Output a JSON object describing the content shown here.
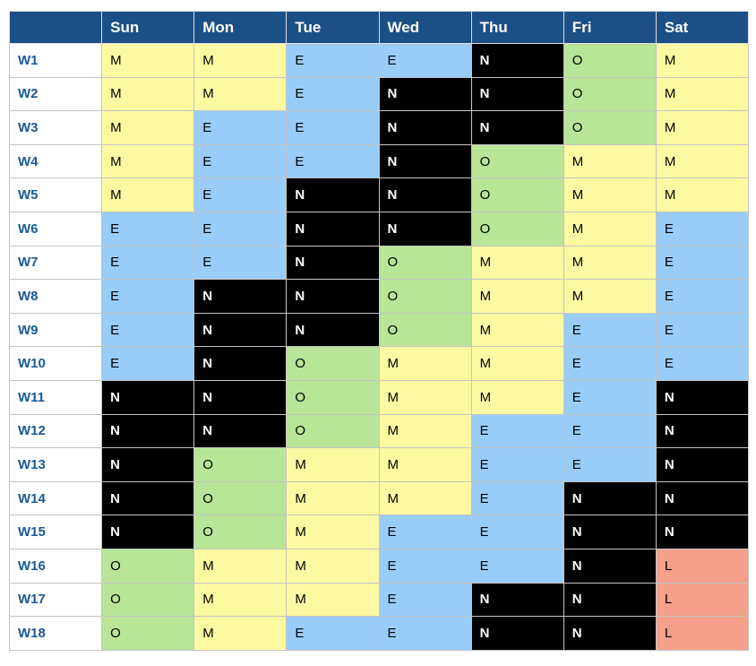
{
  "table": {
    "header": [
      "Sun",
      "Mon",
      "Tue",
      "Wed",
      "Thu",
      "Fri",
      "Sat"
    ],
    "rows": [
      [
        "W1",
        "M",
        "M",
        "E",
        "E",
        "N",
        "O",
        "M"
      ],
      [
        "W2",
        "M",
        "M",
        "E",
        "N",
        "N",
        "O",
        "M"
      ],
      [
        "W3",
        "M",
        "E",
        "E",
        "N",
        "N",
        "O",
        "M"
      ],
      [
        "W4",
        "M",
        "E",
        "E",
        "N",
        "O",
        "M",
        "M"
      ],
      [
        "W5",
        "M",
        "E",
        "N",
        "N",
        "O",
        "M",
        "M"
      ],
      [
        "W6",
        "E",
        "E",
        "N",
        "N",
        "O",
        "M",
        "E"
      ],
      [
        "W7",
        "E",
        "E",
        "N",
        "O",
        "M",
        "M",
        "E"
      ],
      [
        "W8",
        "E",
        "N",
        "N",
        "O",
        "M",
        "M",
        "E"
      ],
      [
        "W9",
        "E",
        "N",
        "N",
        "O",
        "M",
        "E",
        "E"
      ],
      [
        "W10",
        "E",
        "N",
        "O",
        "M",
        "M",
        "E",
        "E"
      ],
      [
        "W11",
        "N",
        "N",
        "O",
        "M",
        "M",
        "E",
        "N"
      ],
      [
        "W12",
        "N",
        "N",
        "O",
        "M",
        "E",
        "E",
        "N"
      ],
      [
        "W13",
        "N",
        "O",
        "M",
        "M",
        "E",
        "E",
        "N"
      ],
      [
        "W14",
        "N",
        "O",
        "M",
        "M",
        "E",
        "N",
        "N"
      ],
      [
        "W15",
        "N",
        "O",
        "M",
        "E",
        "E",
        "N",
        "N"
      ],
      [
        "W16",
        "O",
        "M",
        "M",
        "E",
        "E",
        "N",
        "L"
      ],
      [
        "W17",
        "O",
        "M",
        "M",
        "E",
        "N",
        "N",
        "L"
      ],
      [
        "W18",
        "O",
        "M",
        "E",
        "E",
        "N",
        "N",
        "L"
      ]
    ]
  }
}
